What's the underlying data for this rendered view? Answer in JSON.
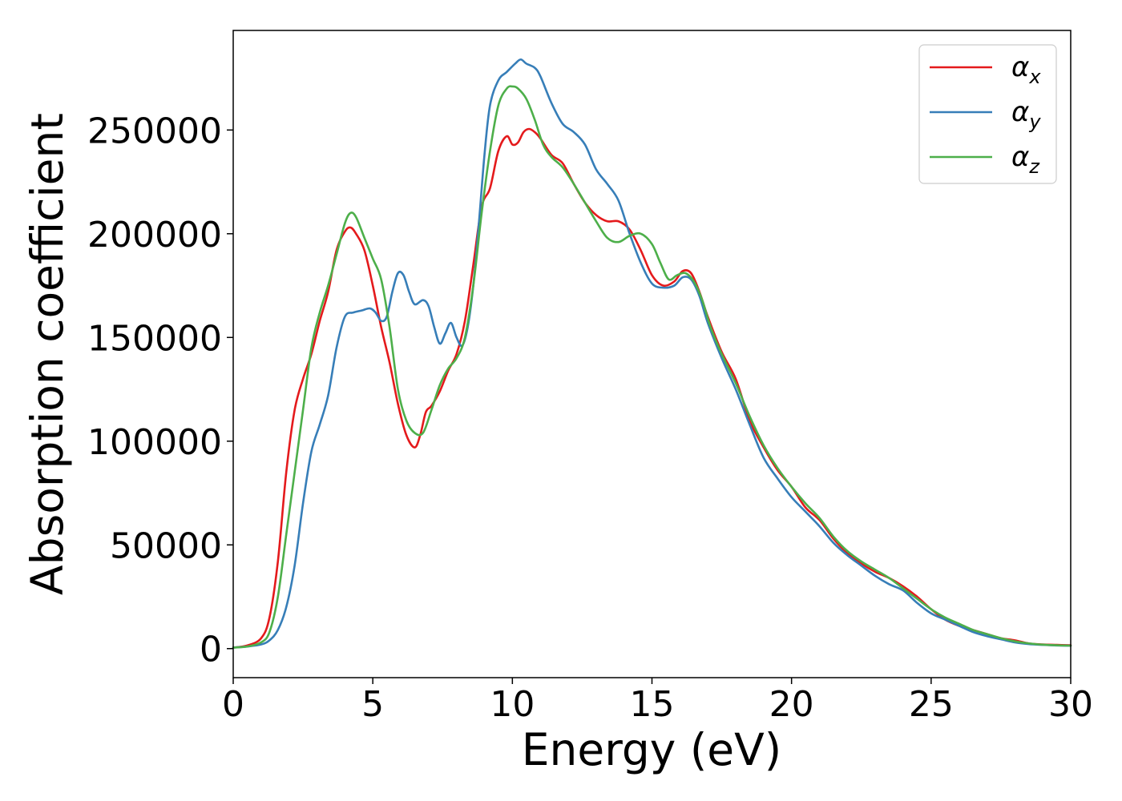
{
  "chart_data": {
    "type": "line",
    "title": "",
    "xlabel": "Energy (eV)",
    "ylabel": "Absorption coefficient",
    "xlim": [
      0,
      30
    ],
    "ylim": [
      -14000,
      298000
    ],
    "xticks": [
      0,
      5,
      10,
      15,
      20,
      25,
      30
    ],
    "yticks": [
      0,
      50000,
      100000,
      150000,
      200000,
      250000
    ],
    "grid": false,
    "legend_position": "top-right",
    "series": [
      {
        "name": "αx",
        "symbol": "α",
        "subscript": "x",
        "color": "#e41a1c",
        "x": [
          0,
          0.5,
          1,
          1.3,
          1.6,
          1.9,
          2.2,
          2.5,
          2.8,
          3.1,
          3.4,
          3.7,
          4.0,
          4.2,
          4.4,
          4.7,
          5.0,
          5.3,
          5.6,
          5.9,
          6.2,
          6.5,
          6.7,
          6.9,
          7.1,
          7.4,
          7.7,
          8.0,
          8.3,
          8.6,
          8.9,
          9.2,
          9.5,
          9.8,
          10.0,
          10.2,
          10.4,
          10.6,
          10.8,
          11.0,
          11.4,
          11.8,
          12.2,
          12.6,
          13.0,
          13.4,
          13.8,
          14.2,
          14.6,
          15.0,
          15.4,
          15.8,
          16.1,
          16.4,
          16.7,
          17.0,
          17.5,
          18.0,
          18.5,
          19.0,
          19.5,
          20.0,
          20.5,
          21.0,
          21.5,
          22.0,
          22.5,
          23.0,
          23.5,
          24.0,
          24.5,
          25.0,
          25.5,
          26.0,
          26.5,
          27.0,
          27.5,
          28.0,
          28.5,
          29.0,
          29.5,
          30.0
        ],
        "y": [
          500,
          1500,
          5000,
          15000,
          42000,
          85000,
          115000,
          130000,
          142000,
          158000,
          172000,
          192000,
          201000,
          203000,
          200000,
          192000,
          175000,
          155000,
          138000,
          118000,
          103000,
          97000,
          103000,
          114000,
          117000,
          124000,
          134000,
          142000,
          158000,
          185000,
          213000,
          222000,
          240000,
          247000,
          243000,
          244000,
          249000,
          250500,
          249000,
          246000,
          238000,
          234000,
          224000,
          215000,
          209000,
          206000,
          206000,
          202000,
          192000,
          180000,
          175000,
          177000,
          182000,
          181000,
          172000,
          160000,
          143000,
          130000,
          110000,
          97000,
          86000,
          78000,
          68000,
          62000,
          53000,
          46000,
          41000,
          37000,
          34000,
          30000,
          25000,
          19000,
          14000,
          11000,
          9000,
          7000,
          5000,
          4000,
          2500,
          2000,
          1800,
          1600
        ]
      },
      {
        "name": "αy",
        "symbol": "α",
        "subscript": "y",
        "color": "#377eb8",
        "x": [
          0,
          0.5,
          1,
          1.3,
          1.6,
          1.9,
          2.2,
          2.5,
          2.8,
          3.1,
          3.4,
          3.7,
          4.0,
          4.3,
          4.6,
          4.9,
          5.1,
          5.3,
          5.5,
          5.7,
          5.9,
          6.1,
          6.3,
          6.5,
          6.8,
          7.0,
          7.2,
          7.4,
          7.6,
          7.8,
          8.0,
          8.2,
          8.4,
          8.6,
          8.8,
          9.0,
          9.2,
          9.5,
          9.8,
          10.1,
          10.3,
          10.5,
          10.8,
          11.0,
          11.4,
          11.8,
          12.2,
          12.6,
          13.0,
          13.4,
          13.8,
          14.2,
          14.6,
          15.0,
          15.4,
          15.8,
          16.1,
          16.4,
          16.7,
          17.0,
          17.5,
          18.0,
          18.5,
          19.0,
          19.5,
          20.0,
          20.5,
          21.0,
          21.5,
          22.0,
          22.5,
          23.0,
          23.5,
          24.0,
          24.5,
          25.0,
          25.5,
          26.0,
          26.5,
          27.0,
          27.5,
          28.0,
          28.5,
          29.0,
          29.5,
          30.0
        ],
        "y": [
          500,
          1000,
          2000,
          4000,
          9000,
          20000,
          40000,
          70000,
          95000,
          108000,
          122000,
          145000,
          160000,
          162000,
          163000,
          164000,
          162000,
          158000,
          160000,
          172000,
          181000,
          180000,
          172000,
          166000,
          168000,
          165000,
          155000,
          147000,
          152000,
          157000,
          150000,
          146000,
          155000,
          175000,
          205000,
          238000,
          262000,
          274000,
          278000,
          282000,
          284000,
          282000,
          280000,
          276000,
          263000,
          253000,
          249000,
          243000,
          231000,
          224000,
          216000,
          200000,
          186000,
          176000,
          174000,
          175000,
          179000,
          178000,
          170000,
          157000,
          140000,
          125000,
          108000,
          92000,
          82000,
          73000,
          66000,
          59000,
          51000,
          45000,
          40000,
          35000,
          31000,
          28000,
          22000,
          17000,
          14000,
          11000,
          8000,
          6000,
          4500,
          3000,
          2200,
          1800,
          1500,
          1400
        ]
      },
      {
        "name": "αz",
        "symbol": "α",
        "subscript": "z",
        "color": "#4daf4a",
        "x": [
          0,
          0.5,
          1,
          1.3,
          1.6,
          1.9,
          2.2,
          2.5,
          2.8,
          3.1,
          3.4,
          3.7,
          4.0,
          4.2,
          4.4,
          4.7,
          5.0,
          5.3,
          5.6,
          5.9,
          6.2,
          6.5,
          6.8,
          7.1,
          7.4,
          7.7,
          8.0,
          8.3,
          8.6,
          8.9,
          9.2,
          9.5,
          9.8,
          10.0,
          10.2,
          10.5,
          10.8,
          11.1,
          11.4,
          11.8,
          12.2,
          12.6,
          13.0,
          13.4,
          13.8,
          14.2,
          14.6,
          15.0,
          15.3,
          15.6,
          15.9,
          16.2,
          16.5,
          16.8,
          17.1,
          17.5,
          18.0,
          18.5,
          19.0,
          19.5,
          20.0,
          20.5,
          21.0,
          21.5,
          22.0,
          22.5,
          23.0,
          23.5,
          24.0,
          24.5,
          25.0,
          25.5,
          26.0,
          26.5,
          27.0,
          27.5,
          28.0,
          28.5,
          29.0,
          29.5,
          30.0
        ],
        "y": [
          500,
          1000,
          3000,
          8000,
          25000,
          55000,
          85000,
          115000,
          145000,
          162000,
          175000,
          190000,
          205000,
          210000,
          208000,
          198000,
          188000,
          178000,
          155000,
          125000,
          110000,
          104000,
          104000,
          115000,
          127000,
          135000,
          140000,
          150000,
          175000,
          210000,
          240000,
          262000,
          270000,
          271000,
          270000,
          265000,
          255000,
          243000,
          237000,
          232000,
          224000,
          215000,
          206000,
          198000,
          196000,
          199000,
          200000,
          195000,
          186000,
          178000,
          180000,
          181000,
          177000,
          168000,
          155000,
          142000,
          128000,
          112000,
          98000,
          87000,
          78000,
          70000,
          63000,
          54000,
          47000,
          42000,
          38000,
          34000,
          29000,
          24000,
          19000,
          15000,
          12000,
          9000,
          7000,
          5000,
          3500,
          2500,
          1900,
          1600,
          1400
        ]
      }
    ]
  }
}
